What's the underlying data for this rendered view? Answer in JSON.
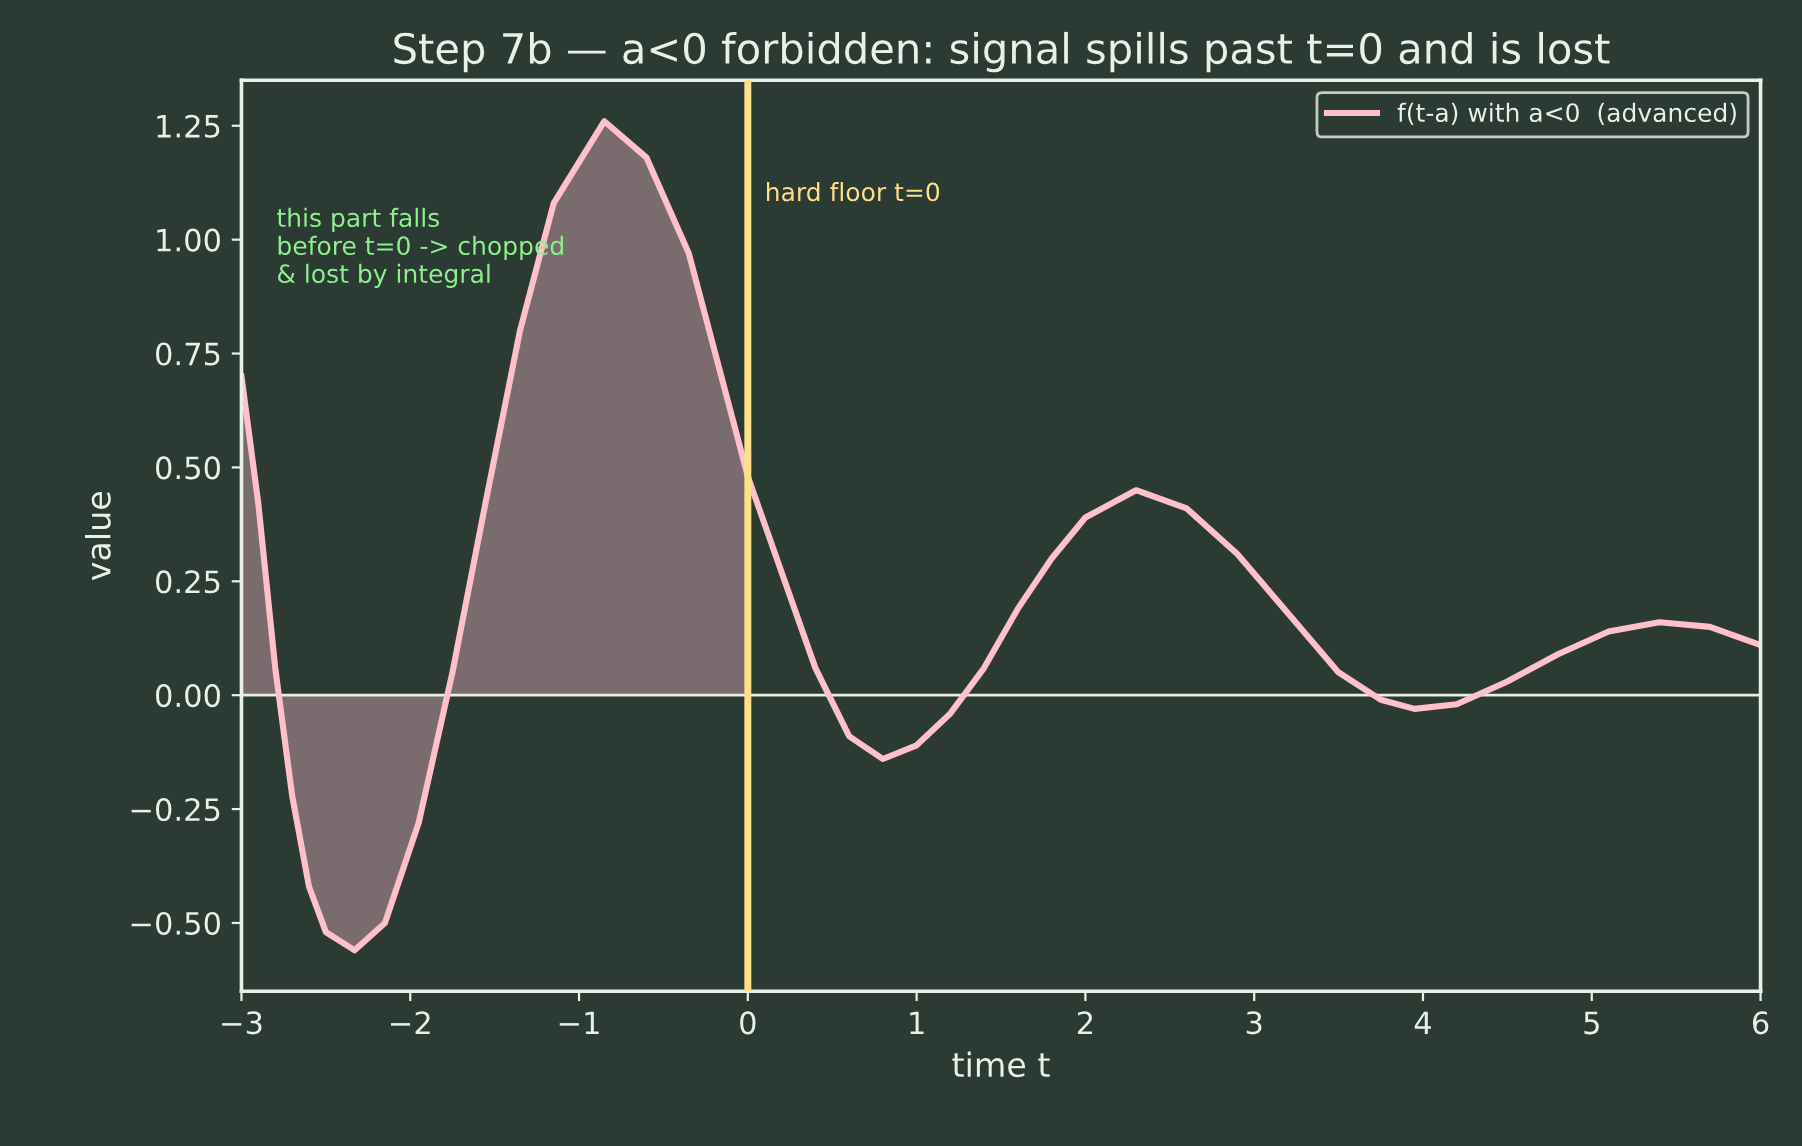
{
  "chart_data": {
    "type": "line",
    "title": "Step 7b — a<0 forbidden: signal spills past t=0 and is lost",
    "xlabel": "time t",
    "ylabel": "value",
    "series": [
      {
        "type": "area",
        "color": "#7a6b6e",
        "x": [
          -3,
          -2.9,
          -2.8,
          -2.7,
          -2.6,
          -2.5,
          -2.33,
          -2.15,
          -1.95,
          -1.75,
          -1.55,
          -1.35,
          -1.15,
          -0.85,
          -0.6,
          -0.35,
          0
        ],
        "values": [
          0.7,
          0.42,
          0.06,
          -0.22,
          -0.42,
          -0.52,
          -0.56,
          -0.5,
          -0.28,
          0.05,
          0.43,
          0.8,
          1.08,
          1.26,
          1.18,
          0.97,
          0.48
        ]
      },
      {
        "name": "f(t-a) with a<0  (advanced)",
        "color": "#ffc0cb",
        "x": [
          -3,
          -2.9,
          -2.8,
          -2.7,
          -2.6,
          -2.5,
          -2.33,
          -2.15,
          -1.95,
          -1.75,
          -1.55,
          -1.35,
          -1.15,
          -0.85,
          -0.6,
          -0.35,
          0,
          0.2,
          0.4,
          0.6,
          0.8,
          1.0,
          1.2,
          1.4,
          1.6,
          1.8,
          2.0,
          2.3,
          2.6,
          2.9,
          3.2,
          3.5,
          3.75,
          3.95,
          4.2,
          4.5,
          4.8,
          5.1,
          5.4,
          5.7,
          6.0
        ],
        "values": [
          0.7,
          0.42,
          0.06,
          -0.22,
          -0.42,
          -0.52,
          -0.56,
          -0.5,
          -0.28,
          0.05,
          0.43,
          0.8,
          1.08,
          1.26,
          1.18,
          0.97,
          0.48,
          0.27,
          0.06,
          -0.09,
          -0.14,
          -0.11,
          -0.04,
          0.06,
          0.19,
          0.3,
          0.39,
          0.45,
          0.41,
          0.31,
          0.18,
          0.05,
          -0.01,
          -0.03,
          -0.02,
          0.03,
          0.09,
          0.14,
          0.16,
          0.15,
          0.11
        ]
      }
    ],
    "ref_lines": [
      {
        "axis": "x",
        "value": 0,
        "label": "hard floor t=0",
        "color": "#ffe08a"
      },
      {
        "axis": "y",
        "value": 0,
        "color": "#e6f0e6"
      }
    ],
    "annotations": [
      "this part falls\nbefore t=0 -> chopped\n& lost by integral"
    ],
    "xlim": [
      -3,
      6
    ],
    "ylim": [
      -0.65,
      1.35
    ],
    "xticks": [
      {
        "value": -3,
        "label": "−3"
      },
      {
        "value": -2,
        "label": "−2"
      },
      {
        "value": -1,
        "label": "−1"
      },
      0,
      1,
      2,
      3,
      4,
      5,
      6
    ],
    "yticks": [
      {
        "value": -0.5,
        "label": "−0.50"
      },
      {
        "value": -0.25,
        "label": "−0.25"
      },
      {
        "value": 0,
        "label": "0.00"
      },
      {
        "value": 0.25,
        "label": "0.25"
      },
      {
        "value": 0.5,
        "label": "0.50"
      },
      {
        "value": 0.75,
        "label": "0.75"
      },
      {
        "value": 1.0,
        "label": "1.00"
      },
      {
        "value": 1.25,
        "label": "1.25"
      }
    ],
    "legend": "top right",
    "grid": false
  }
}
